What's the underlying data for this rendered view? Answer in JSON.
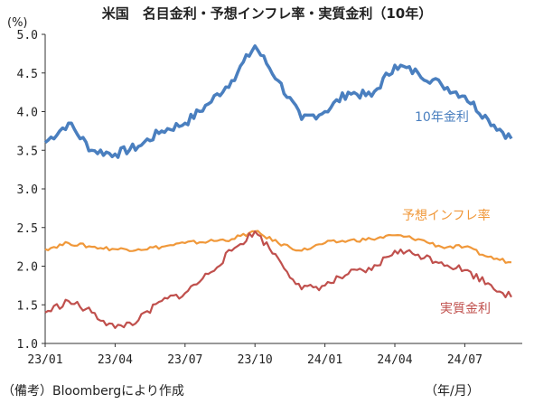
{
  "chart_data": {
    "type": "line",
    "title": "米国　名目金利・予想インフレ率・実質金利（10年）",
    "ylabel": "(%)",
    "xlabel": "（年/月）",
    "ylim": [
      1.0,
      5.0
    ],
    "yticks": [
      "1.0",
      "1.5",
      "2.0",
      "2.5",
      "3.0",
      "3.5",
      "4.0",
      "4.5",
      "5.0"
    ],
    "xticks": [
      "23/01",
      "23/04",
      "23/07",
      "23/10",
      "24/01",
      "24/04",
      "24/07"
    ],
    "grid": false,
    "legend": "inline-labels",
    "x": [
      "23/01",
      "23/02",
      "23/03",
      "23/04",
      "23/05",
      "23/06",
      "23/07",
      "23/08",
      "23/09",
      "23/10",
      "23/11",
      "23/12",
      "24/01",
      "24/02",
      "24/03",
      "24/04",
      "24/05",
      "24/06",
      "24/07",
      "24/08",
      "24/09"
    ],
    "series": [
      {
        "name": "10年金利",
        "color": "#4a7fbf",
        "values": [
          3.6,
          3.85,
          3.5,
          3.45,
          3.55,
          3.75,
          3.85,
          4.1,
          4.4,
          4.85,
          4.4,
          3.9,
          4.0,
          4.25,
          4.2,
          4.6,
          4.5,
          4.35,
          4.2,
          3.9,
          3.65
        ]
      },
      {
        "name": "予想インフレ率",
        "color": "#f0983a",
        "values": [
          2.22,
          2.3,
          2.25,
          2.22,
          2.22,
          2.25,
          2.3,
          2.32,
          2.35,
          2.45,
          2.3,
          2.2,
          2.3,
          2.33,
          2.35,
          2.4,
          2.35,
          2.25,
          2.25,
          2.12,
          2.05
        ]
      },
      {
        "name": "実質金利",
        "color": "#c0504d",
        "values": [
          1.4,
          1.55,
          1.4,
          1.2,
          1.3,
          1.55,
          1.65,
          1.9,
          2.2,
          2.45,
          2.1,
          1.7,
          1.75,
          1.9,
          1.95,
          2.2,
          2.15,
          2.05,
          1.95,
          1.78,
          1.6
        ]
      }
    ]
  },
  "footer": {
    "source": "（備考）Bloombergにより作成",
    "xunit": "（年/月）"
  }
}
